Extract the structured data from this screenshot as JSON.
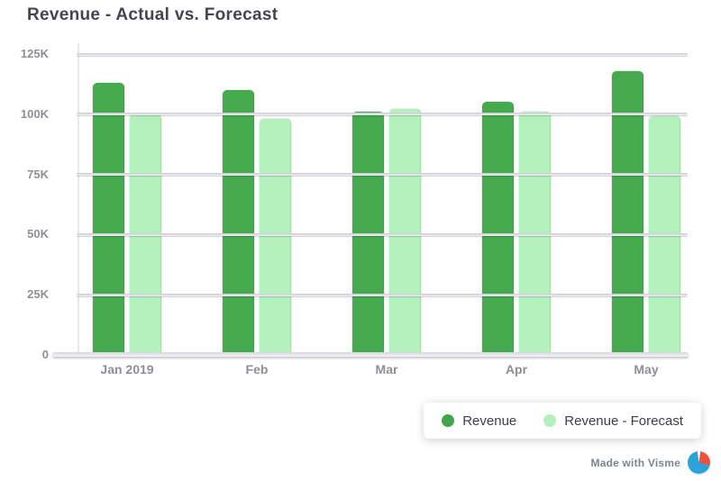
{
  "title": "Revenue - Actual vs. Forecast",
  "legend": {
    "items": [
      {
        "label": "Revenue",
        "color": "#3fa64a"
      },
      {
        "label": "Revenue - Forecast",
        "color": "#b4f0bc"
      }
    ]
  },
  "watermark": {
    "text": "Made with Visme"
  },
  "colors": {
    "title_text": "#45454e",
    "axis_text": "#8e8e96",
    "grid_line": "#d0d0d6",
    "axis_line": "#e7e7ec",
    "legend_text": "#3f3f49",
    "watermark_text": "rgba(100,110,125,0.85)",
    "bar_actual": "#45a94e",
    "bar_forecast": "#b4f0bc",
    "logo_blue": "#2aa4da",
    "logo_red": "#ee5340"
  },
  "chart_data": {
    "type": "bar",
    "title": "Revenue - Actual vs. Forecast",
    "categories": [
      "Jan 2019",
      "Feb",
      "Mar",
      "Apr",
      "May"
    ],
    "series": [
      {
        "name": "Revenue",
        "color": "#45a94e",
        "values": [
          113000,
          110000,
          101000,
          105000,
          118000
        ]
      },
      {
        "name": "Revenue - Forecast",
        "color": "#b4f0bc",
        "values": [
          100000,
          98000,
          102000,
          101000,
          99000
        ]
      }
    ],
    "xlabel": "",
    "ylabel": "",
    "ylim": [
      0,
      125000
    ],
    "yticks": [
      {
        "value": 0,
        "label": "0"
      },
      {
        "value": 25000,
        "label": "25K"
      },
      {
        "value": 50000,
        "label": "50K"
      },
      {
        "value": 75000,
        "label": "75K"
      },
      {
        "value": 100000,
        "label": "100K"
      },
      {
        "value": 125000,
        "label": "125K"
      }
    ],
    "grid": true,
    "legend_position": "bottom-right"
  }
}
